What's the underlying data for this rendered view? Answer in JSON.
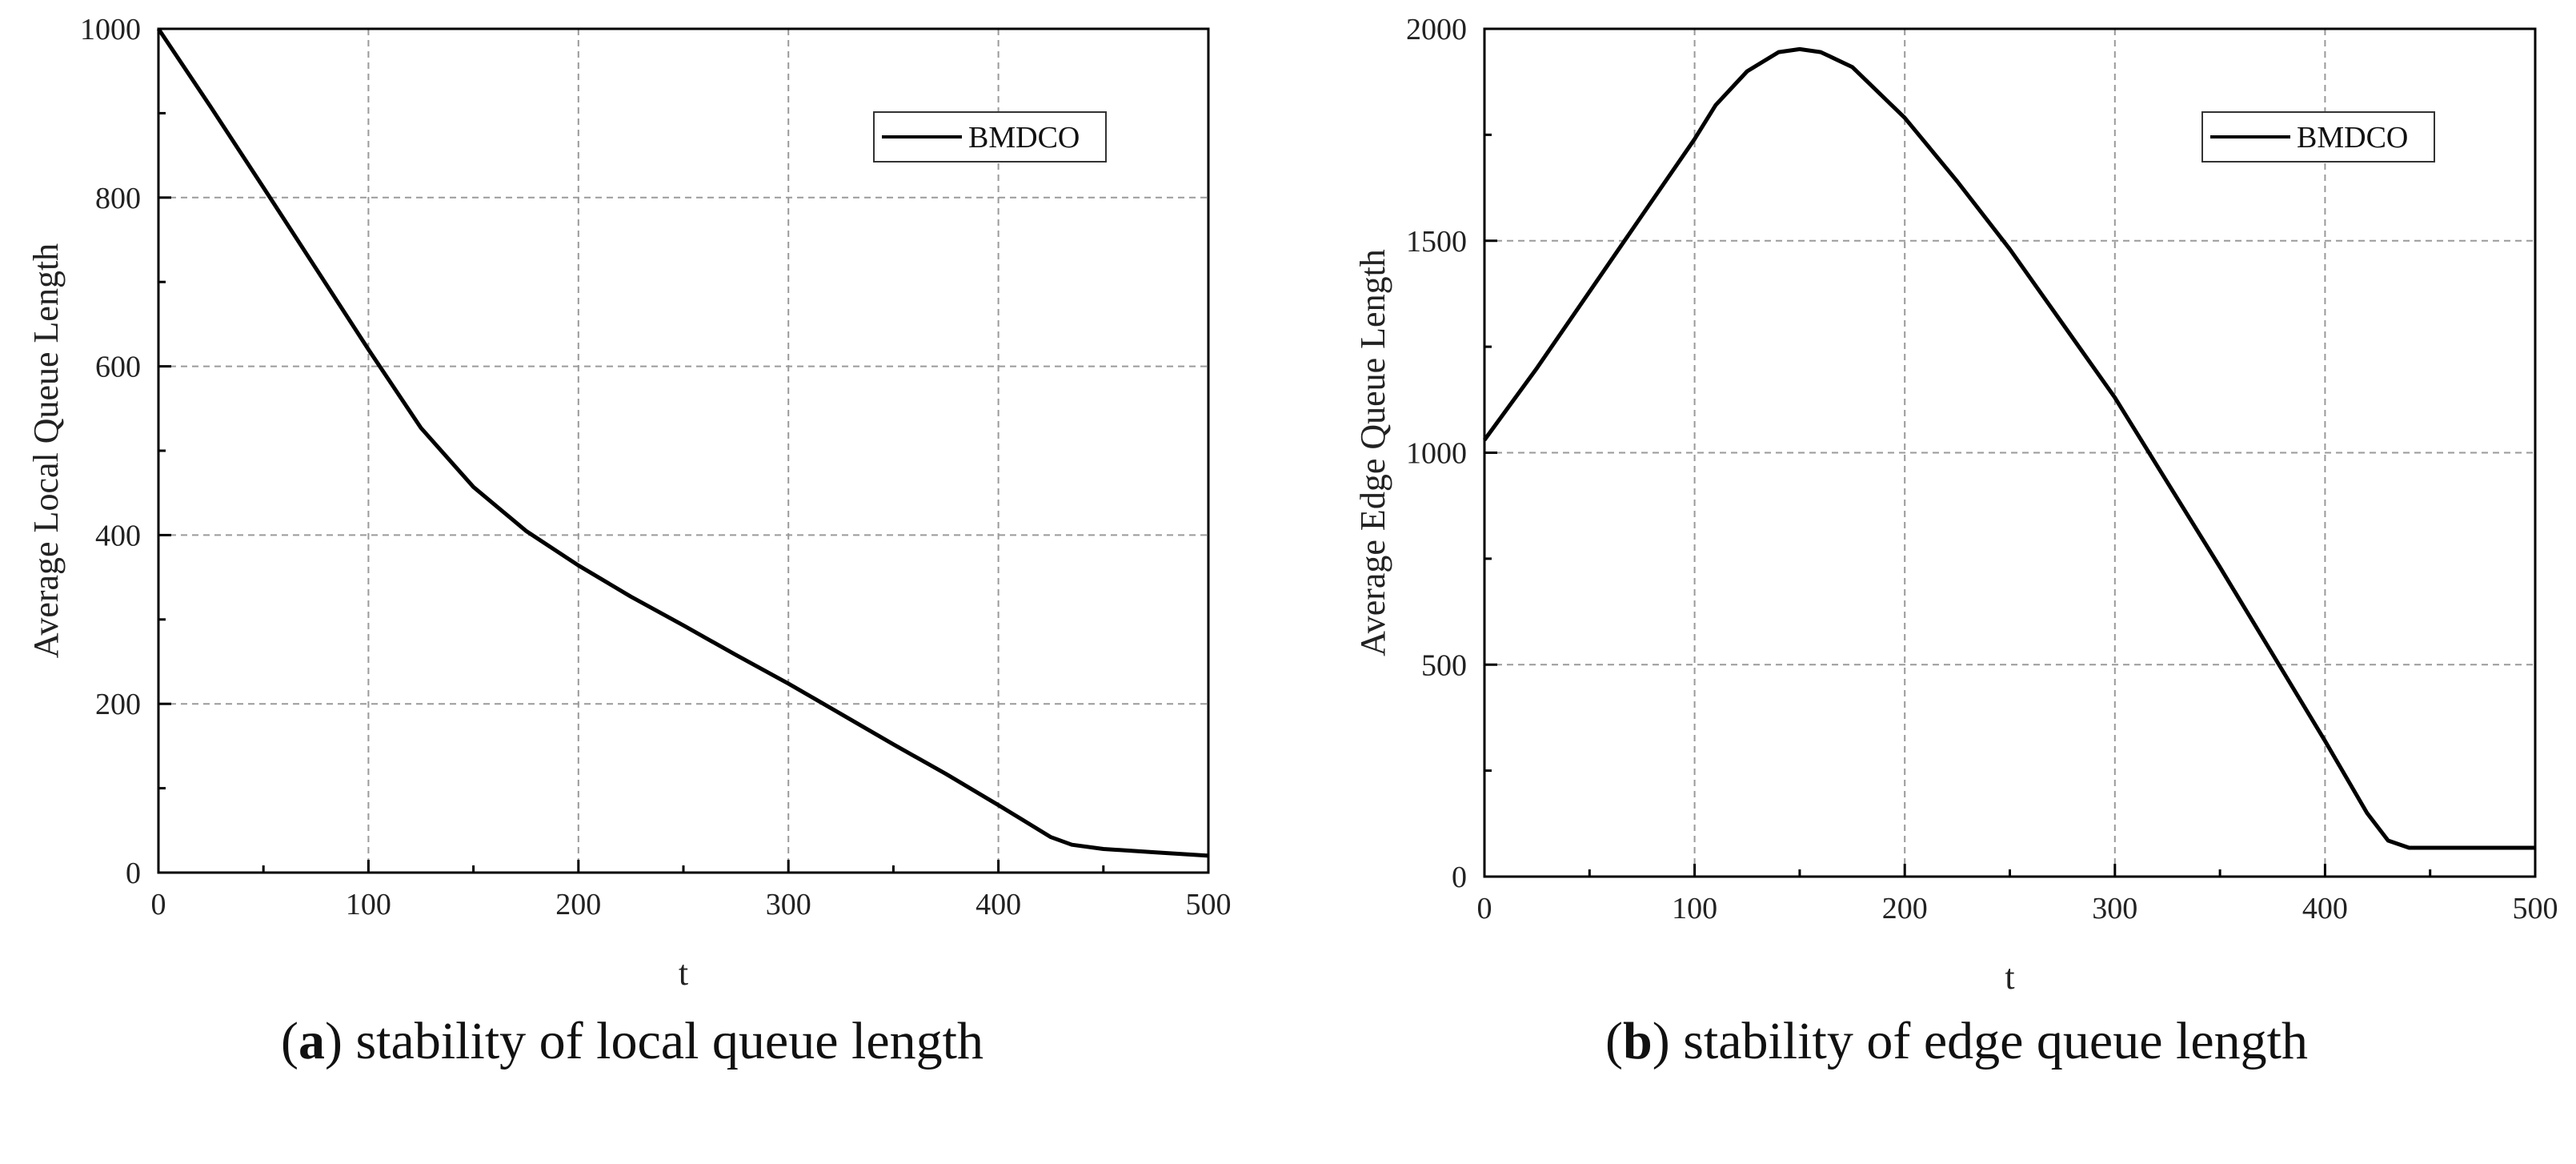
{
  "chart_data": [
    {
      "type": "line",
      "id": "a",
      "caption_letter": "a",
      "caption_text": "stability of local queue length",
      "xlabel": "t",
      "ylabel": "Average Local Queue Length",
      "xlim": [
        0,
        500
      ],
      "ylim": [
        0,
        1000
      ],
      "xticks": [
        "0",
        "100",
        "200",
        "300",
        "400",
        "500"
      ],
      "yticks": [
        "0",
        "200",
        "400",
        "600",
        "800",
        "1000"
      ],
      "grid": true,
      "legend_position": "top-right",
      "series": [
        {
          "name": "BMDCO",
          "color": "#000000",
          "x": [
            0,
            25,
            50,
            75,
            100,
            125,
            150,
            175,
            200,
            225,
            250,
            275,
            300,
            325,
            350,
            375,
            400,
            425,
            435,
            450,
            475,
            500
          ],
          "y": [
            1000,
            907,
            812,
            716,
            620,
            527,
            457,
            405,
            364,
            327,
            293,
            258,
            224,
            188,
            152,
            117,
            80,
            42,
            33,
            28,
            24,
            20
          ]
        }
      ]
    },
    {
      "type": "line",
      "id": "b",
      "caption_letter": "b",
      "caption_text": "stability of edge queue length",
      "xlabel": "t",
      "ylabel": "Average Edge Queue Length",
      "xlim": [
        0,
        500
      ],
      "ylim": [
        0,
        2000
      ],
      "xticks": [
        "0",
        "100",
        "200",
        "300",
        "400",
        "500"
      ],
      "yticks": [
        "0",
        "500",
        "1000",
        "1500",
        "2000"
      ],
      "grid": true,
      "legend_position": "top-right",
      "series": [
        {
          "name": "BMDCO",
          "color": "#000000",
          "x": [
            0,
            25,
            50,
            75,
            100,
            110,
            125,
            140,
            150,
            160,
            175,
            200,
            225,
            250,
            275,
            300,
            325,
            350,
            375,
            400,
            420,
            430,
            440,
            450,
            475,
            500
          ],
          "y": [
            1030,
            1200,
            1380,
            1560,
            1740,
            1820,
            1900,
            1945,
            1952,
            1945,
            1910,
            1790,
            1640,
            1480,
            1305,
            1130,
            930,
            730,
            525,
            320,
            150,
            85,
            68,
            68,
            68,
            68
          ]
        }
      ]
    }
  ]
}
